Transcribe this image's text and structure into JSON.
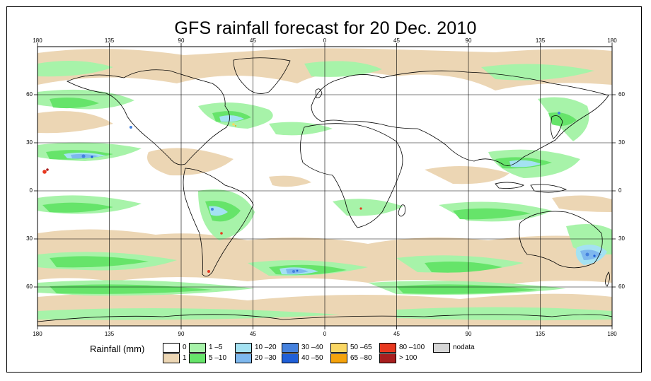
{
  "title": "GFS rainfall forecast for 20 Dec. 2010",
  "x_ticks": [
    "180",
    "135",
    "90",
    "45",
    "0",
    "45",
    "90",
    "135",
    "180"
  ],
  "y_ticks": [
    "60",
    "30",
    "0",
    "30",
    "60"
  ],
  "legend": {
    "title": "Rainfall (mm)",
    "items": [
      {
        "label": "0",
        "color": "#ffffff"
      },
      {
        "label": "1",
        "color": "#ecd6b4"
      },
      {
        "label": "1 –5",
        "color": "#a7f3a9"
      },
      {
        "label": "5 –10",
        "color": "#66e46a"
      },
      {
        "label": "10 –20",
        "color": "#a4e2f2"
      },
      {
        "label": "20 –30",
        "color": "#7eb8ee"
      },
      {
        "label": "30 –40",
        "color": "#4682de"
      },
      {
        "label": "40 –50",
        "color": "#1f5fd8"
      },
      {
        "label": "50 –65",
        "color": "#fad764"
      },
      {
        "label": "65 –80",
        "color": "#f5a30c"
      },
      {
        "label": "80 –100",
        "color": "#e8381f"
      },
      {
        "label": "> 100",
        "color": "#a81e1e"
      },
      {
        "label": "nodata",
        "color": "#d6d6d6"
      }
    ]
  }
}
